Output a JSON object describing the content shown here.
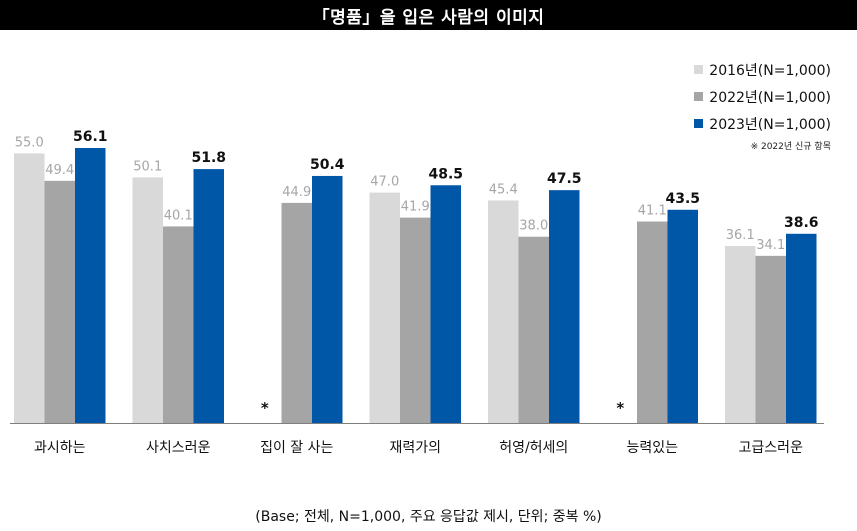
{
  "title": "「명품」을 입은 사람의 이미지",
  "note": "※ 2022년 신규 항목",
  "base_note": "(Base; 전체, N=1,000, 주요 응답값 제시, 단위; 중복 %)",
  "missing_marker": "*",
  "colors": {
    "s2016": "#d9d9d9",
    "s2022": "#a5a5a5",
    "s2023": "#0057a8",
    "label2016": "#a6a6a6",
    "label2022": "#a6a6a6",
    "label2023": "#111111"
  },
  "chart_data": {
    "type": "bar",
    "categories": [
      "과시하는",
      "사치스러운",
      "집이 잘 사는",
      "재력가의",
      "허영/허세의",
      "능력있는",
      "고급스러운"
    ],
    "series": [
      {
        "name": "2016년(N=1,000)",
        "values": [
          55.0,
          50.1,
          null,
          47.0,
          45.4,
          null,
          36.1
        ],
        "labels": [
          "55.0",
          "50.1",
          "",
          "47.0",
          "45.4",
          "",
          "36.1"
        ]
      },
      {
        "name": "2022년(N=1,000)",
        "values": [
          49.4,
          40.1,
          44.9,
          41.9,
          38.0,
          41.1,
          34.1
        ],
        "labels": [
          "49.4",
          "40.1",
          "44.9",
          "41.9",
          "38.0",
          "41.1",
          "34.1"
        ]
      },
      {
        "name": "2023년(N=1,000)",
        "values": [
          56.1,
          51.8,
          50.4,
          48.5,
          47.5,
          43.5,
          38.6
        ],
        "labels": [
          "56.1",
          "51.8",
          "50.4",
          "48.5",
          "47.5",
          "43.5",
          "38.6"
        ]
      }
    ],
    "ylim": [
      0,
      56.1
    ],
    "grid": false,
    "legend_position": "top-right"
  }
}
